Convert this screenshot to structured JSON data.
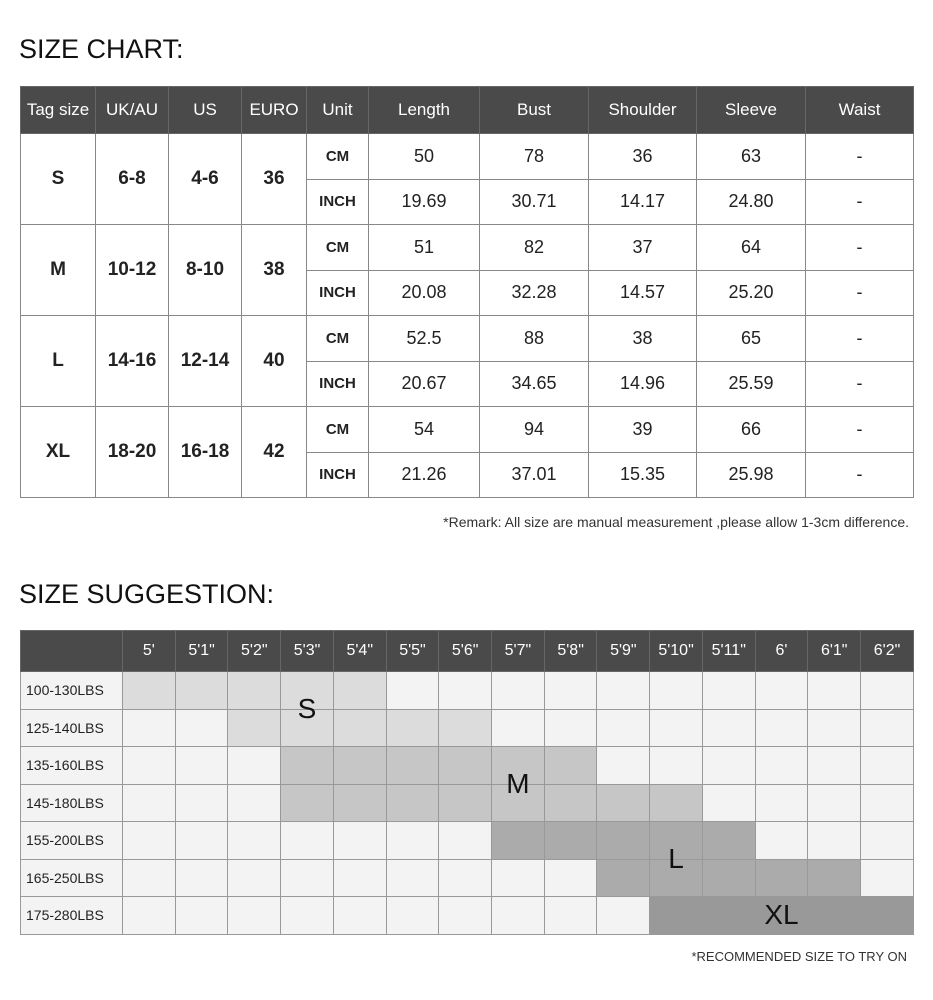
{
  "size_chart": {
    "title": "SIZE CHART:",
    "headers": [
      "Tag size",
      "UK/AU",
      "US",
      "EURO",
      "Unit",
      "Length",
      "Bust",
      "Shoulder",
      "Sleeve",
      "Waist"
    ],
    "rows": [
      {
        "tag": "S",
        "uk": "6-8",
        "us": "4-6",
        "euro": "36",
        "cm": [
          "CM",
          "50",
          "78",
          "36",
          "63",
          "-"
        ],
        "inch": [
          "INCH",
          "19.69",
          "30.71",
          "14.17",
          "24.80",
          "-"
        ]
      },
      {
        "tag": "M",
        "uk": "10-12",
        "us": "8-10",
        "euro": "38",
        "cm": [
          "CM",
          "51",
          "82",
          "37",
          "64",
          "-"
        ],
        "inch": [
          "INCH",
          "20.08",
          "32.28",
          "14.57",
          "25.20",
          "-"
        ]
      },
      {
        "tag": "L",
        "uk": "14-16",
        "us": "12-14",
        "euro": "40",
        "cm": [
          "CM",
          "52.5",
          "88",
          "38",
          "65",
          "-"
        ],
        "inch": [
          "INCH",
          "20.67",
          "34.65",
          "14.96",
          "25.59",
          "-"
        ]
      },
      {
        "tag": "XL",
        "uk": "18-20",
        "us": "16-18",
        "euro": "42",
        "cm": [
          "CM",
          "54",
          "94",
          "39",
          "66",
          "-"
        ],
        "inch": [
          "INCH",
          "21.26",
          "37.01",
          "15.35",
          "25.98",
          "-"
        ]
      }
    ],
    "remark": "*Remark: All size are manual measurement ,please allow 1-3cm difference."
  },
  "size_suggestion": {
    "title": "SIZE SUGGESTION:",
    "heights": [
      "5'",
      "5'1\"",
      "5'2\"",
      "5'3\"",
      "5'4\"",
      "5'5\"",
      "5'6\"",
      "5'7\"",
      "5'8\"",
      "5'9\"",
      "5'10\"",
      "5'11\"",
      "6'",
      "6'1\"",
      "6'2\""
    ],
    "weights": [
      "100-130LBS",
      "125-140LBS",
      "135-160LBS",
      "145-180LBS",
      "155-200LBS",
      "165-250LBS",
      "175-280LBS"
    ],
    "zones": [
      {
        "size": "S",
        "color": "#dcdcdc",
        "cells": [
          [
            0,
            0
          ],
          [
            0,
            1
          ],
          [
            0,
            2
          ],
          [
            0,
            3
          ],
          [
            0,
            4
          ],
          [
            1,
            2
          ],
          [
            1,
            3
          ],
          [
            1,
            4
          ],
          [
            1,
            5
          ],
          [
            1,
            6
          ]
        ]
      },
      {
        "size": "M",
        "color": "#c6c6c6",
        "cells": [
          [
            2,
            3
          ],
          [
            2,
            4
          ],
          [
            2,
            5
          ],
          [
            2,
            6
          ],
          [
            2,
            7
          ],
          [
            2,
            8
          ],
          [
            3,
            3
          ],
          [
            3,
            4
          ],
          [
            3,
            5
          ],
          [
            3,
            6
          ],
          [
            3,
            7
          ],
          [
            3,
            8
          ],
          [
            3,
            9
          ],
          [
            3,
            10
          ]
        ]
      },
      {
        "size": "L",
        "color": "#ababab",
        "cells": [
          [
            4,
            7
          ],
          [
            4,
            8
          ],
          [
            4,
            9
          ],
          [
            4,
            10
          ],
          [
            4,
            11
          ],
          [
            5,
            9
          ],
          [
            5,
            10
          ],
          [
            5,
            11
          ],
          [
            5,
            12
          ],
          [
            5,
            13
          ]
        ]
      },
      {
        "size": "XL",
        "color": "#999999",
        "cells": [
          [
            6,
            10
          ],
          [
            6,
            11
          ],
          [
            6,
            12
          ],
          [
            6,
            13
          ],
          [
            6,
            14
          ]
        ]
      }
    ],
    "note": "*RECOMMENDED SIZE TO TRY ON"
  }
}
